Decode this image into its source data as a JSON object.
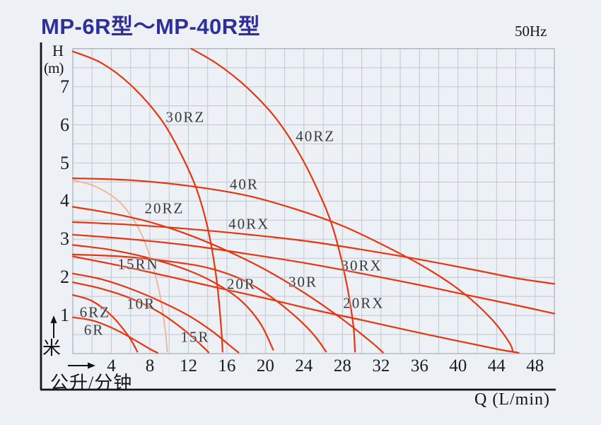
{
  "header": {
    "title": "MP-6R型～MP-40R型",
    "frequency": "50Hz"
  },
  "colors": {
    "background": "#edf1f6",
    "title_blue": "#2e2f9d",
    "curve_red": "#e8350f",
    "curve_light_salmon": "#f4aa8d",
    "grid_line": "#bfc7d2",
    "grid_border": "#a6aeba",
    "axis_black": "#141414",
    "label_gray": "#3a3a3a"
  },
  "chart_data": {
    "type": "line",
    "title": "MP-6R型～MP-40R型",
    "subtitle": "50Hz",
    "xlabel": "Q (L/min)",
    "x_unit_cn": "公升/分钟",
    "y_symbol": "H",
    "y_unit": "(m)",
    "y_unit_cn": "米",
    "xlim": [
      0,
      50
    ],
    "ylim": [
      0,
      8
    ],
    "grid": {
      "on": true,
      "x_step": 2,
      "y_step": 0.5
    },
    "x_ticks": [
      4,
      8,
      12,
      16,
      20,
      24,
      28,
      32,
      36,
      40,
      44,
      48
    ],
    "y_ticks": [
      1,
      2,
      3,
      4,
      5,
      6,
      7
    ],
    "legend_position": "inline-labels",
    "series": [
      {
        "name": "20RZ",
        "color": "#f4aa8d",
        "width": 1.6,
        "label_q": 9.5,
        "label_h": 3.8,
        "points": [
          [
            0,
            4.55
          ],
          [
            2,
            4.42
          ],
          [
            4,
            4.15
          ],
          [
            5.5,
            3.8
          ],
          [
            7,
            3.2
          ],
          [
            8,
            2.55
          ],
          [
            9,
            1.6
          ],
          [
            9.6,
            0.6
          ],
          [
            9.8,
            0.05
          ]
        ]
      },
      {
        "name": "30RZ",
        "color": "#e8350f",
        "width": 2.2,
        "label_q": 11.7,
        "label_h": 6.2,
        "points": [
          [
            0,
            7.93
          ],
          [
            3,
            7.62
          ],
          [
            6,
            7.05
          ],
          [
            9,
            6.2
          ],
          [
            11,
            5.35
          ],
          [
            12.8,
            4.35
          ],
          [
            14,
            3.3
          ],
          [
            14.9,
            2.0
          ],
          [
            15.4,
            0.7
          ],
          [
            15.55,
            0.05
          ]
        ]
      },
      {
        "name": "40RZ",
        "color": "#e8350f",
        "width": 2.2,
        "label_q": 25.2,
        "label_h": 5.7,
        "points": [
          [
            12.3,
            8.0
          ],
          [
            15,
            7.6
          ],
          [
            18,
            7.0
          ],
          [
            21,
            6.2
          ],
          [
            23.5,
            5.25
          ],
          [
            25.5,
            4.25
          ],
          [
            27,
            3.3
          ],
          [
            28.3,
            2.0
          ],
          [
            29.1,
            0.8
          ],
          [
            29.3,
            0.05
          ]
        ]
      },
      {
        "name": "40R",
        "color": "#e8350f",
        "width": 2.2,
        "label_q": 17.8,
        "label_h": 4.43,
        "points": [
          [
            0,
            4.6
          ],
          [
            6,
            4.55
          ],
          [
            12,
            4.4
          ],
          [
            18,
            4.15
          ],
          [
            23,
            3.8
          ],
          [
            28,
            3.35
          ],
          [
            33,
            2.75
          ],
          [
            37,
            2.2
          ],
          [
            40.5,
            1.6
          ],
          [
            43.5,
            0.9
          ],
          [
            45.3,
            0.3
          ],
          [
            45.7,
            0.05
          ]
        ]
      },
      {
        "name": "40RX",
        "color": "#e8350f",
        "width": 2.2,
        "label_q": 18.3,
        "label_h": 3.39,
        "points": [
          [
            0,
            3.45
          ],
          [
            6,
            3.38
          ],
          [
            12,
            3.27
          ],
          [
            18,
            3.13
          ],
          [
            24,
            2.96
          ],
          [
            30,
            2.73
          ],
          [
            36,
            2.47
          ],
          [
            42,
            2.18
          ],
          [
            46,
            1.98
          ],
          [
            50,
            1.83
          ]
        ]
      },
      {
        "name": "30R",
        "color": "#e8350f",
        "width": 2.2,
        "label_q": 23.9,
        "label_h": 1.87,
        "points": [
          [
            0,
            3.85
          ],
          [
            4,
            3.68
          ],
          [
            8,
            3.45
          ],
          [
            12,
            3.12
          ],
          [
            16,
            2.7
          ],
          [
            20,
            2.2
          ],
          [
            24,
            1.6
          ],
          [
            28,
            0.9
          ],
          [
            31,
            0.3
          ],
          [
            32.2,
            0.03
          ]
        ]
      },
      {
        "name": "30RX",
        "color": "#e8350f",
        "width": 2.2,
        "label_q": 30.0,
        "label_h": 2.3,
        "points": [
          [
            0,
            3.12
          ],
          [
            6,
            3.0
          ],
          [
            12,
            2.84
          ],
          [
            18,
            2.62
          ],
          [
            24,
            2.38
          ],
          [
            30,
            2.1
          ],
          [
            36,
            1.8
          ],
          [
            42,
            1.48
          ],
          [
            46,
            1.27
          ],
          [
            50,
            1.05
          ]
        ]
      },
      {
        "name": "20R",
        "color": "#e8350f",
        "width": 2.2,
        "label_q": 17.5,
        "label_h": 1.81,
        "points": [
          [
            0,
            2.6
          ],
          [
            5,
            2.55
          ],
          [
            10,
            2.42
          ],
          [
            14,
            2.25
          ],
          [
            17.5,
            1.95
          ],
          [
            20.5,
            1.5
          ],
          [
            23,
            1.0
          ],
          [
            25,
            0.5
          ],
          [
            26.3,
            0.05
          ]
        ]
      },
      {
        "name": "20RX",
        "color": "#e8350f",
        "width": 2.2,
        "label_q": 30.2,
        "label_h": 1.31,
        "points": [
          [
            0,
            2.55
          ],
          [
            5,
            2.3
          ],
          [
            10,
            2.02
          ],
          [
            15,
            1.73
          ],
          [
            20,
            1.45
          ],
          [
            25,
            1.15
          ],
          [
            30,
            0.88
          ],
          [
            35,
            0.6
          ],
          [
            40,
            0.33
          ],
          [
            44,
            0.12
          ],
          [
            46.3,
            0.02
          ]
        ]
      },
      {
        "name": "15RN",
        "color": "#e8350f",
        "width": 2.2,
        "label_q": 6.8,
        "label_h": 2.33,
        "points": [
          [
            0,
            2.85
          ],
          [
            4,
            2.72
          ],
          [
            8,
            2.5
          ],
          [
            12,
            2.18
          ],
          [
            15,
            1.82
          ],
          [
            17.5,
            1.38
          ],
          [
            19.5,
            0.78
          ],
          [
            20.8,
            0.1
          ]
        ]
      },
      {
        "name": "15R",
        "color": "#e8350f",
        "width": 2.2,
        "label_q": 12.7,
        "label_h": 0.43,
        "points": [
          [
            0,
            2.1
          ],
          [
            3,
            1.95
          ],
          [
            6,
            1.7
          ],
          [
            9,
            1.38
          ],
          [
            12,
            1.0
          ],
          [
            14.5,
            0.58
          ],
          [
            16.5,
            0.17
          ],
          [
            17.2,
            0.03
          ]
        ]
      },
      {
        "name": "10R",
        "color": "#e8350f",
        "width": 2.2,
        "label_q": 7.1,
        "label_h": 1.3,
        "points": [
          [
            0,
            1.87
          ],
          [
            3,
            1.7
          ],
          [
            6,
            1.45
          ],
          [
            9,
            1.08
          ],
          [
            11.5,
            0.63
          ],
          [
            13.5,
            0.18
          ],
          [
            14.1,
            0.03
          ]
        ]
      },
      {
        "name": "6RZ",
        "color": "#e8350f",
        "width": 2.2,
        "label_q": 2.3,
        "label_h": 1.07,
        "points": [
          [
            0,
            1.54
          ],
          [
            2,
            1.38
          ],
          [
            4,
            1.0
          ],
          [
            5.8,
            0.45
          ],
          [
            6.7,
            0.05
          ]
        ]
      },
      {
        "name": "6R",
        "color": "#e8350f",
        "width": 2.2,
        "label_q": 2.2,
        "label_h": 0.61,
        "points": [
          [
            0,
            0.95
          ],
          [
            2,
            0.87
          ],
          [
            4,
            0.68
          ],
          [
            6,
            0.42
          ],
          [
            8,
            0.12
          ],
          [
            8.8,
            0.02
          ]
        ]
      }
    ]
  }
}
